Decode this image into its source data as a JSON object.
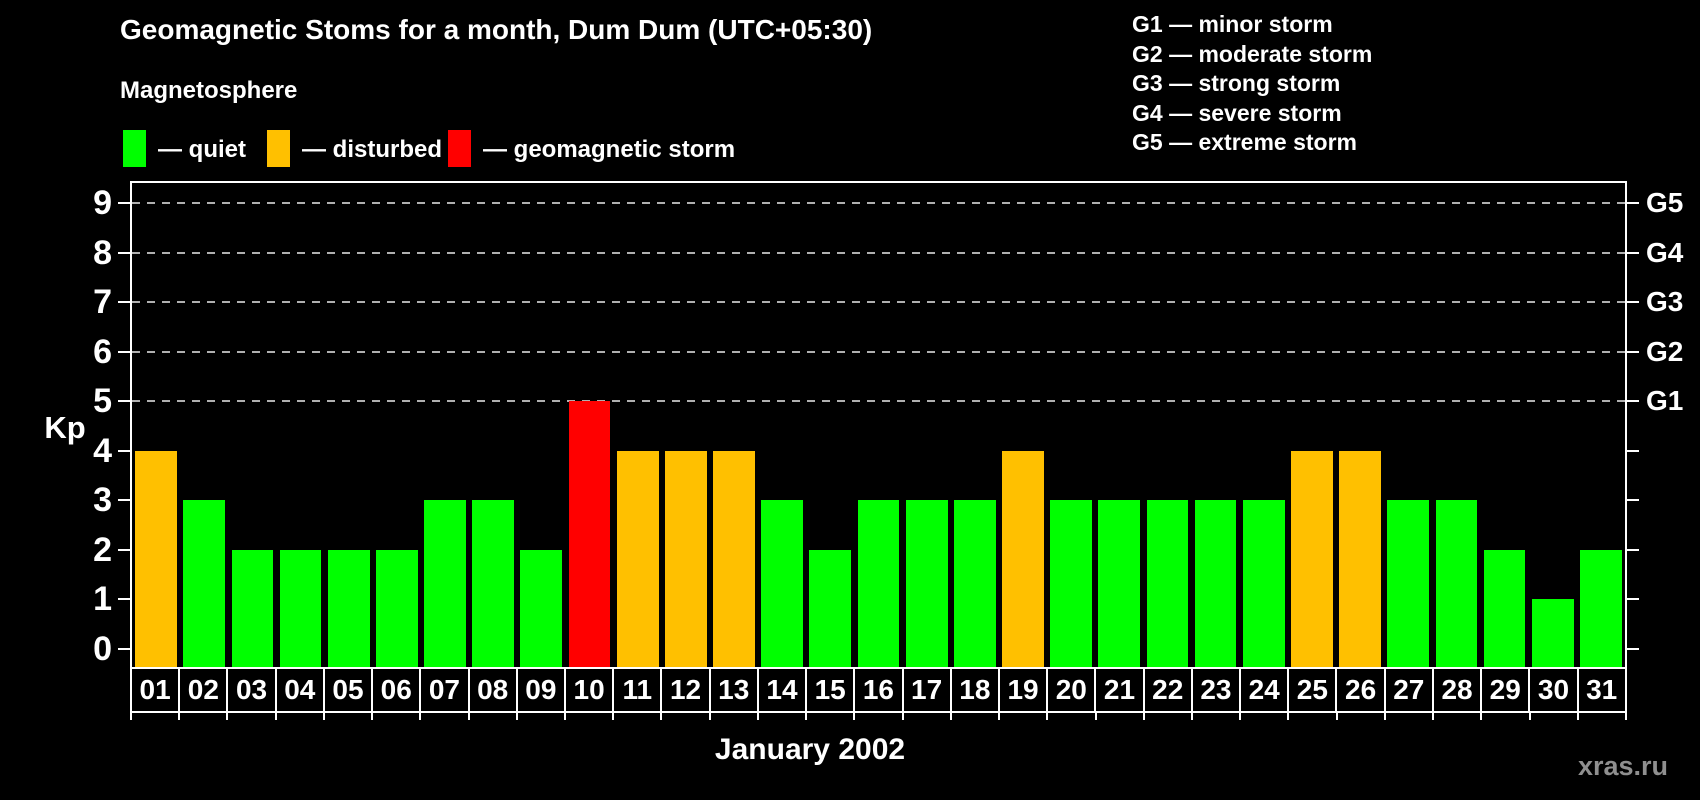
{
  "title": "Geomagnetic Stoms for a month, Dum Dum (UTC+05:30)",
  "subtitle": "Magnetosphere",
  "legend": {
    "items": [
      {
        "key": "quiet",
        "label": "— quiet",
        "color": "#00ff00"
      },
      {
        "key": "disturbed",
        "label": "— disturbed",
        "color": "#ffc000"
      },
      {
        "key": "storm",
        "label": "— geomagnetic storm",
        "color": "#ff0000"
      }
    ]
  },
  "g_scale_legend": [
    "G1 — minor storm",
    "G2 — moderate storm",
    "G3 — strong storm",
    "G4 — severe storm",
    "G5 — extreme storm"
  ],
  "watermark": "xras.ru",
  "chart_data": {
    "type": "bar",
    "title": "Geomagnetic Stoms for a month, Dum Dum (UTC+05:30)",
    "xlabel": "January 2002",
    "ylabel": "Kp",
    "ylim": [
      0,
      9
    ],
    "yticks": [
      0,
      1,
      2,
      3,
      4,
      5,
      6,
      7,
      8,
      9
    ],
    "gridlines_at": [
      5,
      6,
      7,
      8,
      9
    ],
    "grid": "dashed",
    "legend_position": "top-left",
    "right_axis": [
      {
        "kp": 5,
        "label": "G1"
      },
      {
        "kp": 6,
        "label": "G2"
      },
      {
        "kp": 7,
        "label": "G3"
      },
      {
        "kp": 8,
        "label": "G4"
      },
      {
        "kp": 9,
        "label": "G5"
      }
    ],
    "categories": [
      "01",
      "02",
      "03",
      "04",
      "05",
      "06",
      "07",
      "08",
      "09",
      "10",
      "11",
      "12",
      "13",
      "14",
      "15",
      "16",
      "17",
      "18",
      "19",
      "20",
      "21",
      "22",
      "23",
      "24",
      "25",
      "26",
      "27",
      "28",
      "29",
      "30",
      "31"
    ],
    "values": [
      4,
      3,
      2,
      2,
      2,
      2,
      3,
      3,
      2,
      5,
      4,
      4,
      4,
      3,
      2,
      3,
      3,
      3,
      4,
      3,
      3,
      3,
      3,
      3,
      4,
      4,
      3,
      3,
      2,
      1,
      2
    ],
    "statuses": [
      "disturbed",
      "quiet",
      "quiet",
      "quiet",
      "quiet",
      "quiet",
      "quiet",
      "quiet",
      "quiet",
      "storm",
      "disturbed",
      "disturbed",
      "disturbed",
      "quiet",
      "quiet",
      "quiet",
      "quiet",
      "quiet",
      "disturbed",
      "quiet",
      "quiet",
      "quiet",
      "quiet",
      "quiet",
      "disturbed",
      "disturbed",
      "quiet",
      "quiet",
      "quiet",
      "quiet",
      "quiet"
    ],
    "colors": {
      "quiet": "#00ff00",
      "disturbed": "#ffc000",
      "storm": "#ff0000"
    },
    "axis_color": "#ffffff",
    "grid_color": "#b0b0b0",
    "background_color": "#000000"
  }
}
